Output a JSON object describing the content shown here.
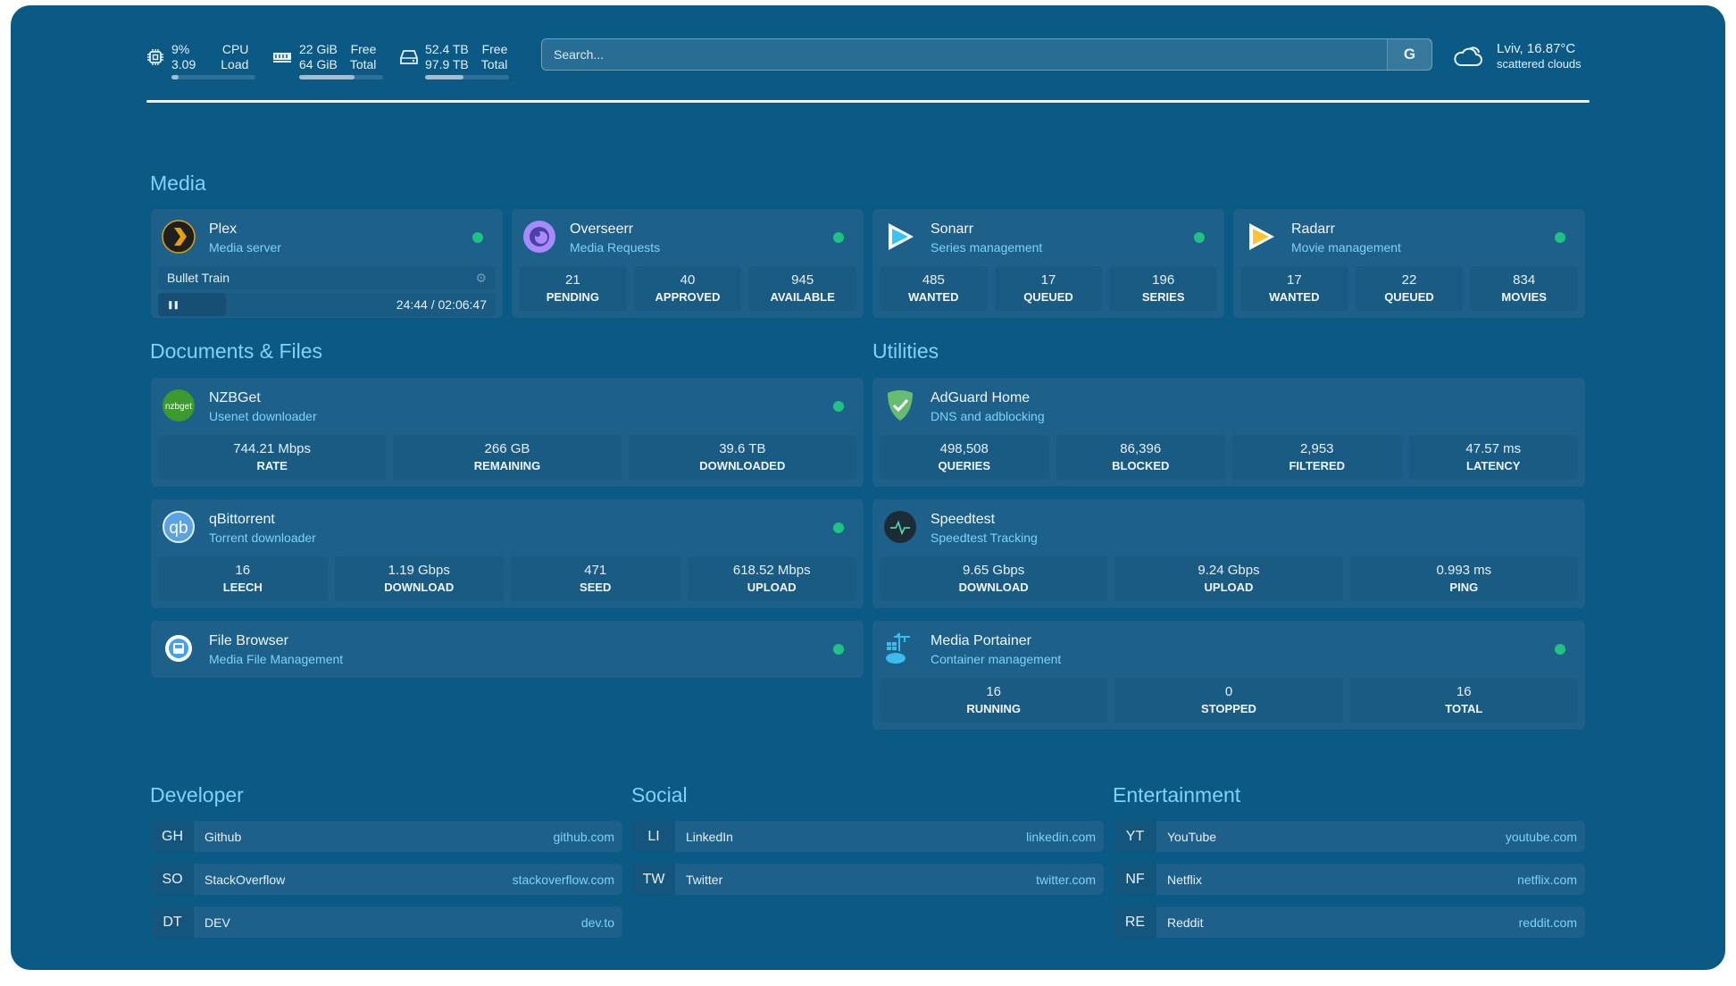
{
  "colors": {
    "background": "#0b5985",
    "card": "#1d6089",
    "accent": "#7fd3f5",
    "status_online": "#1fc282"
  },
  "header": {
    "cpu": {
      "icon": "cpu-icon",
      "value1": "9%",
      "value2": "3.09",
      "label1": "CPU",
      "label2": "Load",
      "percent": 9
    },
    "memory": {
      "icon": "memory-icon",
      "value1": "22 GiB",
      "value2": "64 GiB",
      "label1": "Free",
      "label2": "Total",
      "percent": 66
    },
    "disk": {
      "icon": "disk-icon",
      "value1": "52.4 TB",
      "value2": "97.9 TB",
      "label1": "Free",
      "label2": "Total",
      "percent": 46
    },
    "search": {
      "placeholder": "Search...",
      "provider": "G"
    },
    "weather": {
      "icon": "cloud-icon",
      "location_temp": "Lviv, 16.87°C",
      "condition": "scattered clouds"
    }
  },
  "sections": {
    "media": "Media",
    "documents": "Documents & Files",
    "utilities": "Utilities",
    "developer": "Developer",
    "social": "Social",
    "entertainment": "Entertainment"
  },
  "media": [
    {
      "id": "plex",
      "icon": "plex-icon",
      "title": "Plex",
      "subtitle": "Media server",
      "now_playing": {
        "title": "Bullet Train",
        "time": "24:44 / 02:06:47",
        "progress_percent": 20
      }
    },
    {
      "id": "overseerr",
      "icon": "overseerr-icon",
      "title": "Overseerr",
      "subtitle": "Media Requests",
      "stats": [
        {
          "value": "21",
          "label": "PENDING"
        },
        {
          "value": "40",
          "label": "APPROVED"
        },
        {
          "value": "945",
          "label": "AVAILABLE"
        }
      ]
    },
    {
      "id": "sonarr",
      "icon": "sonarr-icon",
      "title": "Sonarr",
      "subtitle": "Series management",
      "stats": [
        {
          "value": "485",
          "label": "WANTED"
        },
        {
          "value": "17",
          "label": "QUEUED"
        },
        {
          "value": "196",
          "label": "SERIES"
        }
      ]
    },
    {
      "id": "radarr",
      "icon": "radarr-icon",
      "title": "Radarr",
      "subtitle": "Movie management",
      "stats": [
        {
          "value": "17",
          "label": "WANTED"
        },
        {
          "value": "22",
          "label": "QUEUED"
        },
        {
          "value": "834",
          "label": "MOVIES"
        }
      ]
    }
  ],
  "documents": [
    {
      "id": "nzbget",
      "icon": "nzbget-icon",
      "title": "NZBGet",
      "subtitle": "Usenet downloader",
      "stats": [
        {
          "value": "744.21 Mbps",
          "label": "RATE"
        },
        {
          "value": "266 GB",
          "label": "REMAINING"
        },
        {
          "value": "39.6 TB",
          "label": "DOWNLOADED"
        }
      ]
    },
    {
      "id": "qbittorrent",
      "icon": "qbittorrent-icon",
      "title": "qBittorrent",
      "subtitle": "Torrent downloader",
      "stats": [
        {
          "value": "16",
          "label": "LEECH"
        },
        {
          "value": "1.19 Gbps",
          "label": "DOWNLOAD"
        },
        {
          "value": "471",
          "label": "SEED"
        },
        {
          "value": "618.52 Mbps",
          "label": "UPLOAD"
        }
      ]
    },
    {
      "id": "filebrowser",
      "icon": "filebrowser-icon",
      "title": "File Browser",
      "subtitle": "Media File Management"
    }
  ],
  "utilities": [
    {
      "id": "adguard",
      "icon": "adguard-icon",
      "title": "AdGuard Home",
      "subtitle": "DNS and adblocking",
      "stats": [
        {
          "value": "498,508",
          "label": "QUERIES"
        },
        {
          "value": "86,396",
          "label": "BLOCKED"
        },
        {
          "value": "2,953",
          "label": "FILTERED"
        },
        {
          "value": "47.57 ms",
          "label": "LATENCY"
        }
      ]
    },
    {
      "id": "speedtest",
      "icon": "speedtest-icon",
      "title": "Speedtest",
      "subtitle": "Speedtest Tracking",
      "stats": [
        {
          "value": "9.65 Gbps",
          "label": "DOWNLOAD"
        },
        {
          "value": "9.24 Gbps",
          "label": "UPLOAD"
        },
        {
          "value": "0.993 ms",
          "label": "PING"
        }
      ]
    },
    {
      "id": "portainer",
      "icon": "portainer-icon",
      "title": "Media Portainer",
      "subtitle": "Container management",
      "online": true,
      "stats": [
        {
          "value": "16",
          "label": "RUNNING"
        },
        {
          "value": "0",
          "label": "STOPPED"
        },
        {
          "value": "16",
          "label": "TOTAL"
        }
      ]
    }
  ],
  "bookmarks": {
    "developer": [
      {
        "abbr": "GH",
        "name": "Github",
        "url": "github.com"
      },
      {
        "abbr": "SO",
        "name": "StackOverflow",
        "url": "stackoverflow.com"
      },
      {
        "abbr": "DT",
        "name": "DEV",
        "url": "dev.to"
      }
    ],
    "social": [
      {
        "abbr": "LI",
        "name": "LinkedIn",
        "url": "linkedin.com"
      },
      {
        "abbr": "TW",
        "name": "Twitter",
        "url": "twitter.com"
      }
    ],
    "entertainment": [
      {
        "abbr": "YT",
        "name": "YouTube",
        "url": "youtube.com"
      },
      {
        "abbr": "NF",
        "name": "Netflix",
        "url": "netflix.com"
      },
      {
        "abbr": "RE",
        "name": "Reddit",
        "url": "reddit.com"
      }
    ]
  }
}
